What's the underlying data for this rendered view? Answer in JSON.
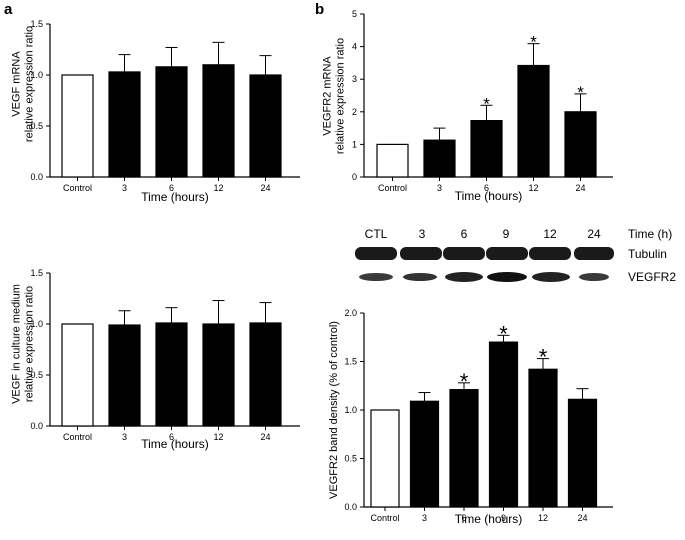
{
  "panel_labels": {
    "a": "a",
    "b": "b"
  },
  "colors": {
    "bar_fill": "#000000",
    "control_fill": "#ffffff",
    "stroke": "#000000"
  },
  "blot": {
    "lanes": [
      "CTL",
      "3",
      "6",
      "9",
      "12",
      "24"
    ],
    "time_label": "Time (h)",
    "band_labels": [
      "Tubulin",
      "VEGFR2"
    ]
  },
  "chart_data": [
    {
      "id": "a-top",
      "type": "bar",
      "categories": [
        "Control",
        "3",
        "6",
        "12",
        "24"
      ],
      "values": [
        1.0,
        1.03,
        1.08,
        1.1,
        1.0
      ],
      "errors": [
        0,
        0.17,
        0.19,
        0.22,
        0.19
      ],
      "significant": [
        false,
        false,
        false,
        false,
        false
      ],
      "xlabel": "Time (hours)",
      "ylabel_lines": [
        "VEGF mRNA",
        "relative expression ratio"
      ],
      "ylim": [
        0,
        1.5
      ],
      "yticks": [
        "0.0",
        "0.5",
        "1.0",
        "1.5"
      ],
      "grid": false
    },
    {
      "id": "a-bottom",
      "type": "bar",
      "categories": [
        "Control",
        "3",
        "6",
        "12",
        "24"
      ],
      "values": [
        1.0,
        0.99,
        1.01,
        1.0,
        1.01
      ],
      "errors": [
        0,
        0.14,
        0.15,
        0.23,
        0.2
      ],
      "significant": [
        false,
        false,
        false,
        false,
        false
      ],
      "xlabel": "Time (hours)",
      "ylabel_lines": [
        "VEGF in culture medium",
        "relative expression ratio"
      ],
      "ylim": [
        0,
        1.5
      ],
      "yticks": [
        "0.0",
        "0.5",
        "1.0",
        "1.5"
      ],
      "grid": false
    },
    {
      "id": "b-top",
      "type": "bar",
      "categories": [
        "Control",
        "3",
        "6",
        "12",
        "24"
      ],
      "values": [
        1.0,
        1.13,
        1.73,
        3.42,
        2.0
      ],
      "errors": [
        0,
        0.37,
        0.47,
        0.67,
        0.55
      ],
      "significant": [
        false,
        false,
        true,
        true,
        true
      ],
      "xlabel": "Time (hours)",
      "ylabel_lines": [
        "VEGFR2 mRNA",
        "relative expression ratio"
      ],
      "ylim": [
        0,
        5
      ],
      "yticks": [
        "0",
        "1",
        "2",
        "3",
        "4",
        "5"
      ],
      "grid": false
    },
    {
      "id": "b-bottom",
      "type": "bar",
      "categories": [
        "Control",
        "3",
        "6",
        "9",
        "12",
        "24"
      ],
      "values": [
        1.0,
        1.09,
        1.21,
        1.7,
        1.42,
        1.11
      ],
      "errors": [
        0,
        0.09,
        0.07,
        0.07,
        0.11,
        0.11
      ],
      "significant": [
        false,
        false,
        true,
        true,
        true,
        false
      ],
      "xlabel": "Time (hours)",
      "ylabel_lines": [
        "VEGFR2 band density (% of control)"
      ],
      "ylim": [
        0,
        2.0
      ],
      "yticks": [
        "0.0",
        "0.5",
        "1.0",
        "1.5",
        "2.0"
      ],
      "grid": false,
      "significance_mark": "*"
    }
  ]
}
